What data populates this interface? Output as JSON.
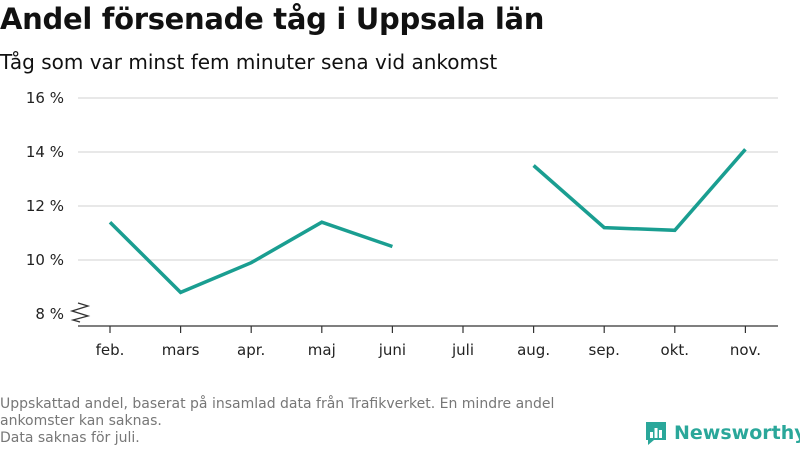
{
  "title": "Andel försenade tåg i Uppsala län",
  "subtitle": "Tåg som var minst fem minuter sena vid ankomst",
  "footnote": {
    "line1": "Uppskattad andel, baserat på insamlad data från Trafikverket. En mindre andel ankomster kan saknas.",
    "line2": "Data saknas för juli."
  },
  "brand": {
    "name": "Newsworthy",
    "color": "#2aa79a"
  },
  "chart_data": {
    "type": "line",
    "title": "Andel försenade tåg i Uppsala län",
    "subtitle": "Tåg som var minst fem minuter sena vid ankomst",
    "categories": [
      "feb.",
      "mars",
      "apr.",
      "maj",
      "juni",
      "juli",
      "aug.",
      "sep.",
      "okt.",
      "nov."
    ],
    "series": [
      {
        "values": [
          11.4,
          8.8,
          9.9,
          11.4,
          10.5,
          null,
          13.5,
          11.2,
          11.1,
          14.1
        ],
        "color": "#1a9e91"
      }
    ],
    "yticks": [
      8,
      10,
      12,
      14,
      16
    ],
    "ytick_labels": [
      "8 %",
      "10 %",
      "12 %",
      "14 %",
      "16 %"
    ],
    "ylim": [
      8,
      16
    ],
    "y_axis_break": true,
    "grid": "horizontal",
    "xlabel": "",
    "ylabel": ""
  }
}
